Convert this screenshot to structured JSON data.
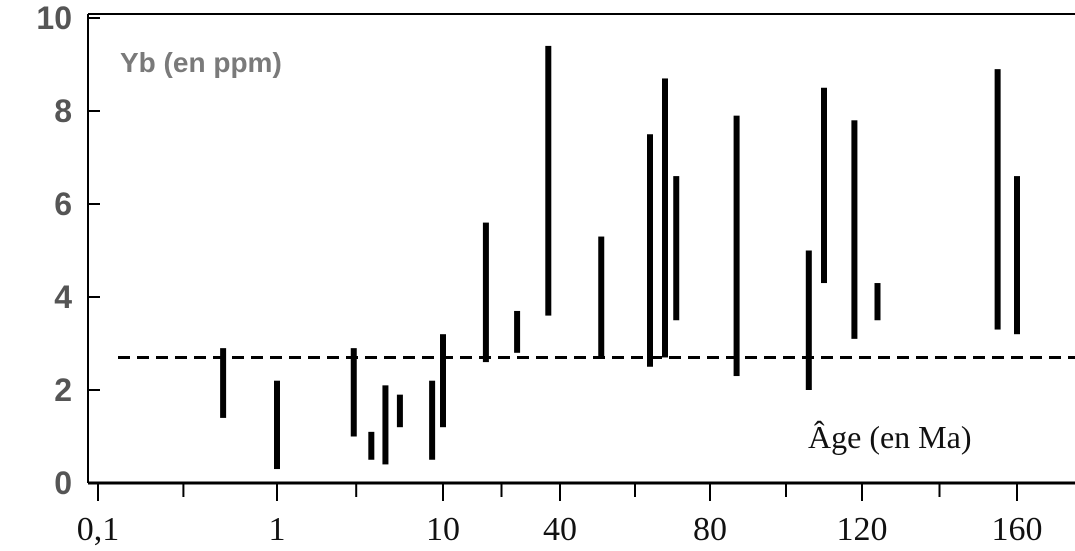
{
  "chart_data": {
    "type": "range-bar",
    "ylabel": "Yb (en ppm)",
    "xlabel": "Âge (en Ma)",
    "ylim": [
      0,
      10
    ],
    "y_ticks": [
      "0",
      "2",
      "4",
      "6",
      "8",
      "10"
    ],
    "x_tick_labels": [
      "0,1",
      "1",
      "10",
      "40",
      "80",
      "120",
      "160"
    ],
    "x_tick_values": [
      0.1,
      1,
      10,
      40,
      80,
      120,
      160
    ],
    "x_axis_scale": "log (0.1–10) then linear (10–160)",
    "threshold_line": {
      "y": 2.7,
      "style": "dashed"
    },
    "grid": false,
    "color": "#000000",
    "bars": [
      {
        "x": 0.5,
        "ymin": 1.4,
        "ymax": 2.9
      },
      {
        "x": 1.0,
        "ymin": 0.3,
        "ymax": 2.2
      },
      {
        "x": 2.9,
        "ymin": 1.0,
        "ymax": 2.9
      },
      {
        "x": 3.7,
        "ymin": 0.5,
        "ymax": 1.1
      },
      {
        "x": 4.5,
        "ymin": 0.4,
        "ymax": 2.1
      },
      {
        "x": 5.5,
        "ymin": 1.2,
        "ymax": 1.9
      },
      {
        "x": 8.6,
        "ymin": 0.5,
        "ymax": 2.2
      },
      {
        "x": 10.0,
        "ymin": 1.2,
        "ymax": 3.2
      },
      {
        "x": 21,
        "ymin": 2.6,
        "ymax": 5.6
      },
      {
        "x": 29,
        "ymin": 2.8,
        "ymax": 3.7
      },
      {
        "x": 37,
        "ymin": 3.6,
        "ymax": 9.4
      },
      {
        "x": 51,
        "ymin": 2.7,
        "ymax": 5.3
      },
      {
        "x": 64,
        "ymin": 2.5,
        "ymax": 7.5
      },
      {
        "x": 68,
        "ymin": 2.7,
        "ymax": 8.7
      },
      {
        "x": 71,
        "ymin": 3.5,
        "ymax": 6.6
      },
      {
        "x": 87,
        "ymin": 2.3,
        "ymax": 7.9
      },
      {
        "x": 106,
        "ymin": 2.0,
        "ymax": 5.0
      },
      {
        "x": 110,
        "ymin": 4.3,
        "ymax": 8.5
      },
      {
        "x": 118,
        "ymin": 3.1,
        "ymax": 7.8
      },
      {
        "x": 124,
        "ymin": 3.5,
        "ymax": 4.3
      },
      {
        "x": 155,
        "ymin": 3.3,
        "ymax": 8.9
      },
      {
        "x": 160,
        "ymin": 3.2,
        "ymax": 6.6
      }
    ]
  }
}
